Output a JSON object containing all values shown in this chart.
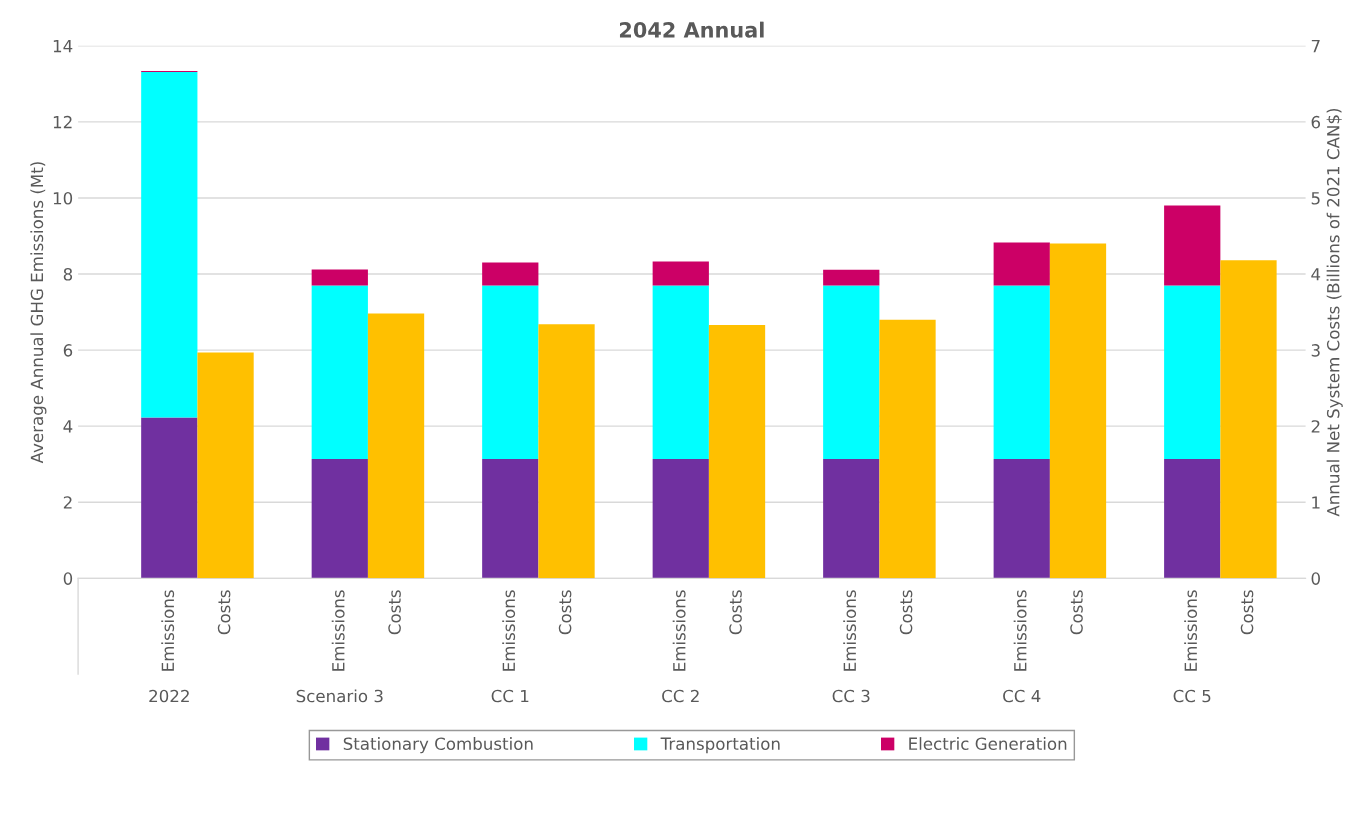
{
  "chart_data": {
    "type": "bar",
    "title": "2042 Annual",
    "ylabel": "Average Annual GHG Emissions (Mt)",
    "y2label": "Annual Net System Costs (Billions of 2021 CAN$)",
    "categories": [
      "2022",
      "Scenario 3",
      "CC 1",
      "CC 2",
      "CC 3",
      "CC 4",
      "CC 5"
    ],
    "stacked": true,
    "series": [
      {
        "name": "Stationary Combustion",
        "color": "#7030a0",
        "values": [
          4.23,
          3.14,
          3.14,
          3.14,
          3.14,
          3.14,
          3.14
        ]
      },
      {
        "name": "Transportation",
        "color": "#00ffff",
        "values": [
          9.08,
          4.56,
          4.56,
          4.56,
          4.56,
          4.56,
          4.56
        ]
      },
      {
        "name": "Electric Generation",
        "color": "#cc0066",
        "values": [
          0.03,
          0.42,
          0.6,
          0.63,
          0.41,
          1.13,
          2.1
        ]
      },
      {
        "color": "#ffc000",
        "axis": "y2",
        "values": [
          2.97,
          3.48,
          3.34,
          3.33,
          3.4,
          4.4,
          4.18
        ]
      }
    ],
    "annotations": [
      "Emissions",
      "Costs",
      "Emissions",
      "Costs",
      "Emissions",
      "Costs",
      "Emissions",
      "Costs",
      "Emissions",
      "Costs",
      "Emissions",
      "Costs",
      "Emissions",
      "Costs"
    ],
    "ylim": [
      0,
      14
    ],
    "yticks": [
      0,
      2,
      4,
      6,
      8,
      10,
      12,
      14
    ],
    "y2lim": [
      0,
      7
    ],
    "y2ticks": [
      0,
      1,
      2,
      3,
      4,
      5,
      6,
      7
    ],
    "grid": "y",
    "legend": "bottom"
  }
}
